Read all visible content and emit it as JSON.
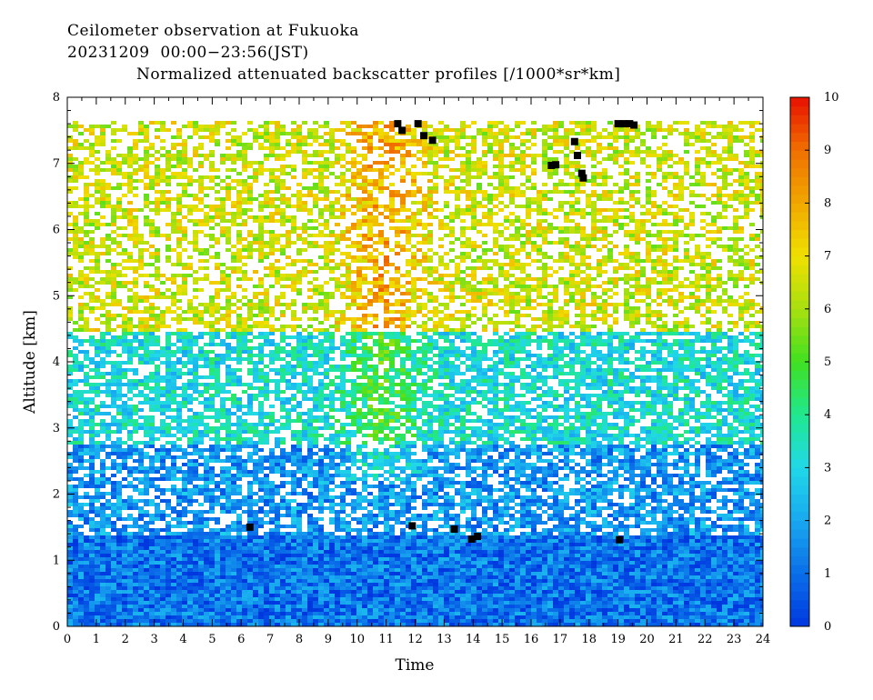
{
  "header": {
    "line1": "Ceilometer observation at Fukuoka",
    "line2": "20231209  00:00−23:56(JST)",
    "line3": "Normalized attenuated backscatter profiles [/1000*sr*km]"
  },
  "chart_data": {
    "type": "heatmap",
    "xlabel": "Time",
    "ylabel": "Altitude [km]",
    "xlim": [
      0,
      24
    ],
    "ylim": [
      0,
      8
    ],
    "x_ticks": [
      "0",
      "1",
      "2",
      "3",
      "4",
      "5",
      "6",
      "7",
      "8",
      "9",
      "10",
      "11",
      "12",
      "13",
      "14",
      "15",
      "16",
      "17",
      "18",
      "19",
      "20",
      "21",
      "22",
      "23",
      "24"
    ],
    "y_ticks": [
      "0",
      "1",
      "2",
      "3",
      "4",
      "5",
      "6",
      "7",
      "8"
    ],
    "data_top_altitude_km": 7.65,
    "colorbar": {
      "range": [
        0,
        10
      ],
      "ticks": [
        "0",
        "1",
        "2",
        "3",
        "4",
        "5",
        "6",
        "7",
        "8",
        "9",
        "10"
      ],
      "colors": [
        "#0038e0",
        "#0a6ee8",
        "#18a8f0",
        "#20d8e8",
        "#20e890",
        "#40e020",
        "#a8e010",
        "#f0e000",
        "#f0a800",
        "#f07000",
        "#e81000"
      ]
    },
    "layers": [
      {
        "from_km": 0.0,
        "to_km": 1.4,
        "value": 1.1,
        "coverage": "dense"
      },
      {
        "from_km": 1.4,
        "to_km": 2.8,
        "value": 1.7,
        "coverage": "patchy"
      },
      {
        "from_km": 2.8,
        "to_km": 4.5,
        "value": 3.2,
        "coverage": "patchy"
      },
      {
        "from_km": 4.5,
        "to_km": 7.65,
        "value": 6.5,
        "coverage": "sparse"
      }
    ],
    "black_markers": [
      {
        "t": 6.3,
        "alt": 1.5
      },
      {
        "t": 11.9,
        "alt": 1.52
      },
      {
        "t": 13.35,
        "alt": 1.47
      },
      {
        "t": 13.95,
        "alt": 1.32
      },
      {
        "t": 14.15,
        "alt": 1.36
      },
      {
        "t": 19.05,
        "alt": 1.31
      },
      {
        "t": 11.4,
        "alt": 7.6
      },
      {
        "t": 11.55,
        "alt": 7.5
      },
      {
        "t": 12.1,
        "alt": 7.6
      },
      {
        "t": 12.3,
        "alt": 7.42
      },
      {
        "t": 12.6,
        "alt": 7.35
      },
      {
        "t": 16.7,
        "alt": 6.97
      },
      {
        "t": 16.85,
        "alt": 6.98
      },
      {
        "t": 17.5,
        "alt": 7.33
      },
      {
        "t": 17.6,
        "alt": 7.12
      },
      {
        "t": 17.75,
        "alt": 6.85
      },
      {
        "t": 17.8,
        "alt": 6.78
      },
      {
        "t": 19.0,
        "alt": 7.6
      },
      {
        "t": 19.2,
        "alt": 7.6
      },
      {
        "t": 19.4,
        "alt": 7.6
      },
      {
        "t": 19.55,
        "alt": 7.58
      }
    ]
  }
}
